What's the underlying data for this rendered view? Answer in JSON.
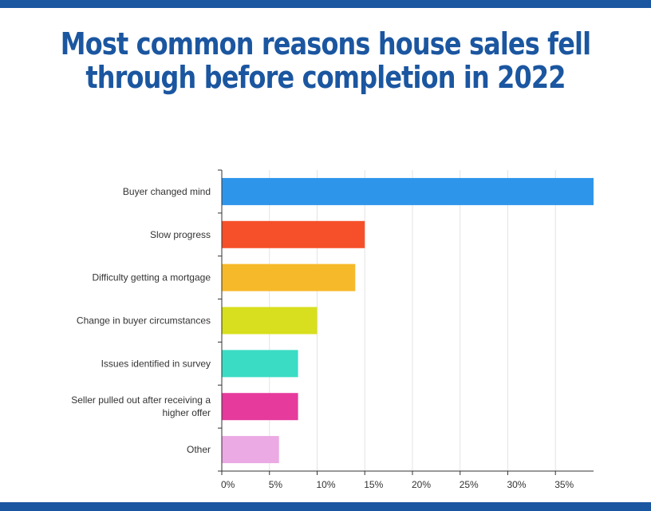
{
  "title_lines": [
    "Most common reasons house sales fell",
    "through before completion in 2022"
  ],
  "colors": {
    "brand": "#1b56a0",
    "grid": "#e3e3e3",
    "axis": "#333333"
  },
  "chart_data": {
    "type": "bar",
    "orientation": "horizontal",
    "title": "Most common reasons house sales fell through before completion in 2022",
    "categories": [
      "Buyer changed mind",
      "Slow progress",
      "Difficulty getting a mortgage",
      "Change in buyer circumstances",
      "Issues identified in survey",
      "Seller pulled out after receiving a higher offer",
      "Other"
    ],
    "category_label_lines": [
      [
        "Buyer changed mind"
      ],
      [
        "Slow progress"
      ],
      [
        "Difficulty getting a mortgage"
      ],
      [
        "Change in buyer circumstances"
      ],
      [
        "Issues identified in survey"
      ],
      [
        "Seller pulled out after receiving a",
        "higher offer"
      ],
      [
        "Other"
      ]
    ],
    "values": [
      39,
      15,
      14,
      10,
      8,
      8,
      6
    ],
    "colors": [
      "#2e96ea",
      "#f5502a",
      "#f6b92a",
      "#d7df1e",
      "#3bdcc4",
      "#e63a9c",
      "#ebaae3"
    ],
    "xlim": [
      0,
      39
    ],
    "xticks": [
      0,
      5,
      10,
      15,
      20,
      25,
      30,
      35
    ],
    "xtick_labels": [
      "0%",
      "5%",
      "10%",
      "15%",
      "20%",
      "25%",
      "30%",
      "35%"
    ],
    "grid": true,
    "legend": "none"
  }
}
